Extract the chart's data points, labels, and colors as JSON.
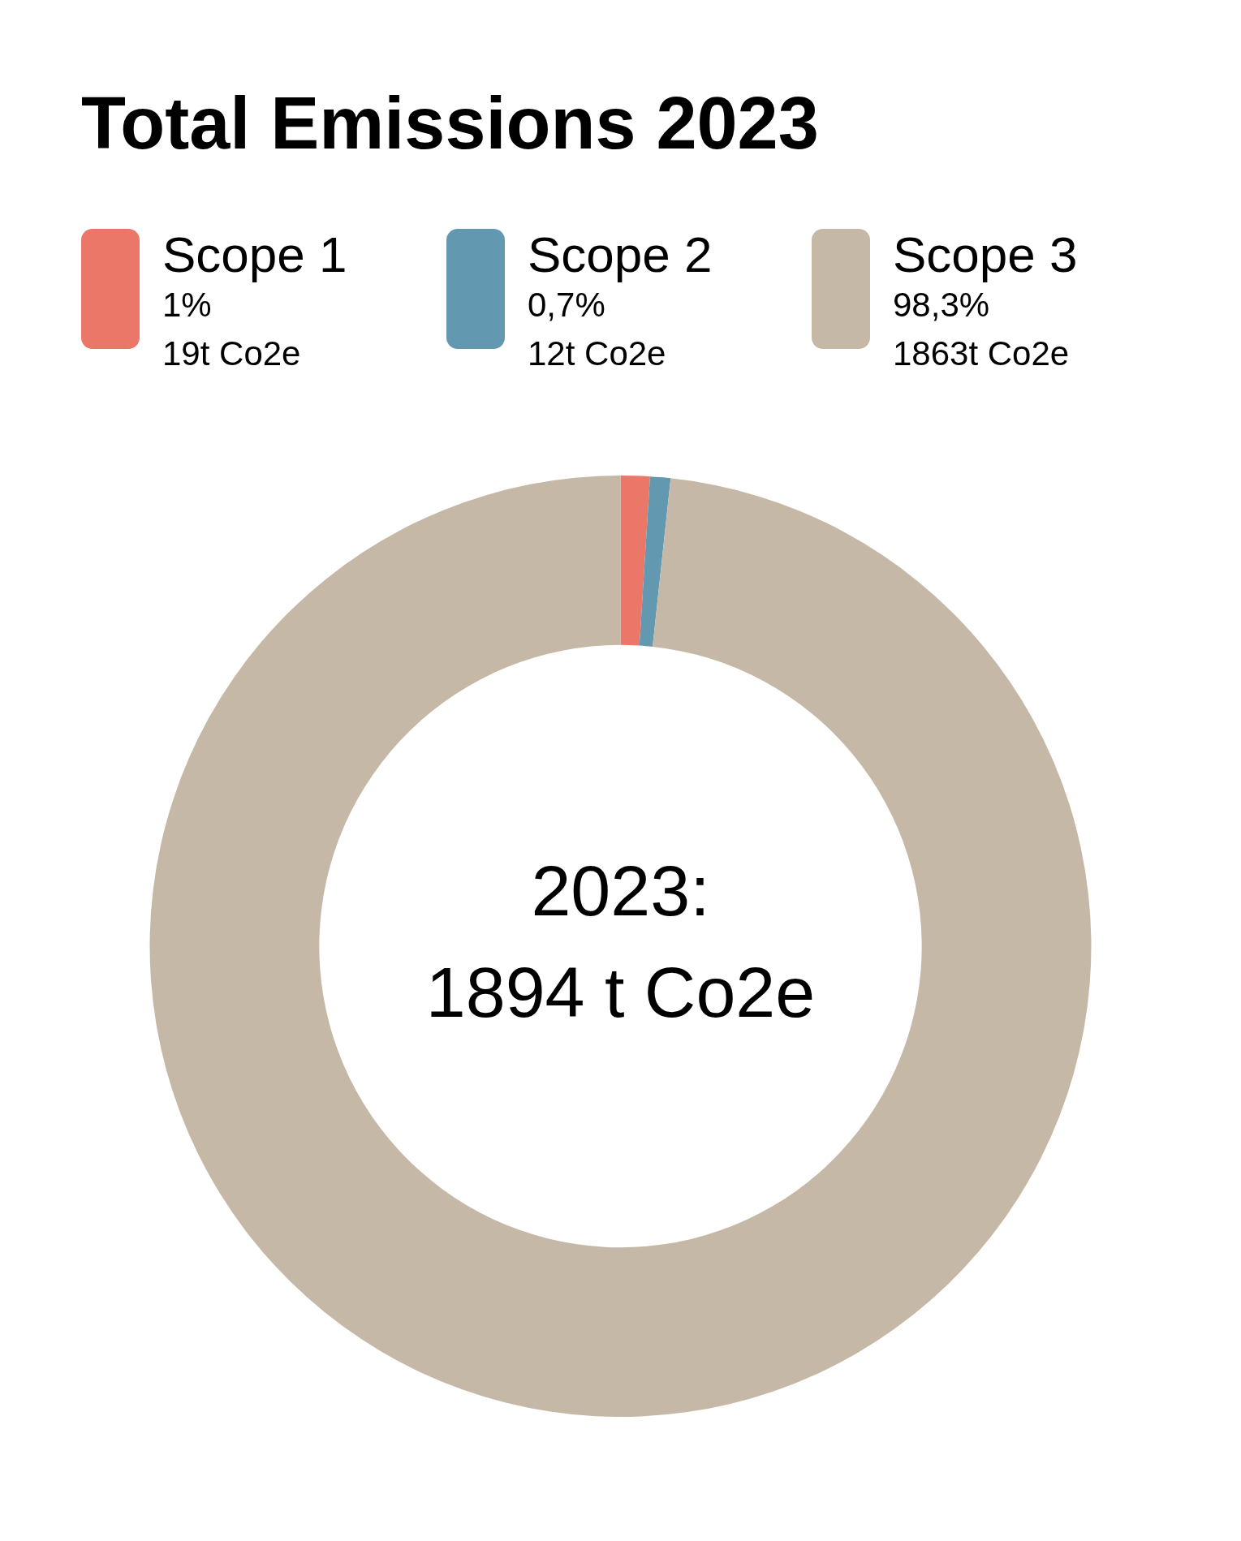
{
  "chart_data": {
    "type": "donut",
    "title": "Total Emissions 2023",
    "categories": [
      "Scope 1",
      "Scope 2",
      "Scope 3"
    ],
    "values": [
      1,
      0.7,
      98.3
    ],
    "colors": [
      "#ea7768",
      "#6399b0",
      "#c6b8a6"
    ],
    "value_labels": [
      "1%",
      "0,7%",
      "98,3%"
    ],
    "legend": "top",
    "annotations": [
      {
        "text": "19t Co2e",
        "x": "Scope 1"
      },
      {
        "text": "12t Co2e",
        "x": "Scope 2"
      },
      {
        "text": "1863t Co2e",
        "x": "Scope 3"
      },
      "2023:",
      "1894 t Co2e"
    ]
  }
}
